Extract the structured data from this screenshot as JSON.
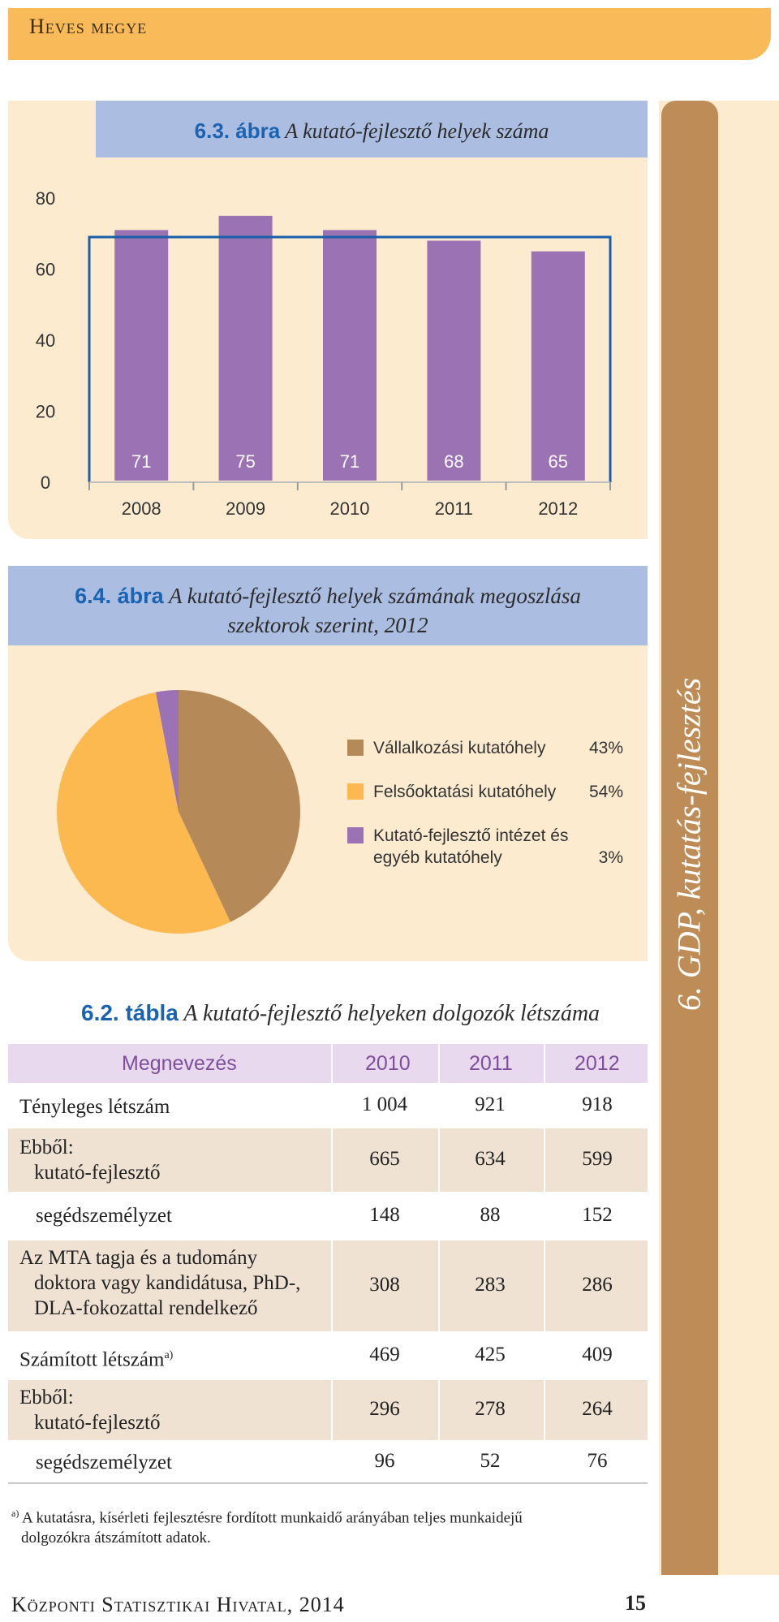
{
  "header": {
    "title": "Heves megye"
  },
  "side_label": "6. GDP, kutatás-fejlesztés",
  "figure_1": {
    "label": "6.3. ábra",
    "title": "A kutató-fejlesztő helyek száma",
    "chart_data": {
      "type": "bar",
      "categories": [
        "2008",
        "2009",
        "2010",
        "2011",
        "2012"
      ],
      "values": [
        71,
        75,
        71,
        68,
        65
      ],
      "y_ticks": [
        "0",
        "20",
        "40",
        "60",
        "80"
      ],
      "ylim": [
        0,
        80
      ],
      "bar_color": "#9b72b3",
      "axis_color": "#1a5ea8"
    }
  },
  "figure_2": {
    "label": "6.4. ábra",
    "title_line1": "A kutató-fejlesztő helyek számának megoszlása",
    "title_line2": "szektorok szerint, 2012",
    "chart_data": {
      "type": "pie",
      "slices": [
        {
          "label": "Vállalkozási kutatóhely",
          "value": 43,
          "pct": "43%",
          "color": "#b58a58"
        },
        {
          "label": "Felsőoktatási kutatóhely",
          "value": 54,
          "pct": "54%",
          "color": "#fbb94f"
        },
        {
          "label_line1": "Kutató-fejlesztő intézet és",
          "label_line2": "egyéb kutatóhely",
          "value": 3,
          "pct": "3%",
          "color": "#9b72b3"
        }
      ]
    }
  },
  "table": {
    "label": "6.2. tábla",
    "title": "A kutató-fejlesztő helyeken dolgozók létszáma",
    "headers": [
      "Megnevezés",
      "2010",
      "2011",
      "2012"
    ],
    "rows": [
      {
        "label": "Tényleges létszám",
        "values": [
          "1 004",
          "921",
          "918"
        ]
      },
      {
        "label_line1": "Ebből:",
        "label_line2": "kutató-fejlesztő",
        "values": [
          "665",
          "634",
          "599"
        ]
      },
      {
        "label": "segédszemélyzet",
        "values": [
          "148",
          "88",
          "152"
        ]
      },
      {
        "label_line1": "Az MTA tagja és a tudomány",
        "label_line2": "doktora vagy kandidátusa, PhD-,",
        "label_line3": "DLA-fokozattal rendelkező",
        "values": [
          "308",
          "283",
          "286"
        ]
      },
      {
        "label": "Számított létszám",
        "sup": "a)",
        "values": [
          "469",
          "425",
          "409"
        ]
      },
      {
        "label_line1": "Ebből:",
        "label_line2": "kutató-fejlesztő",
        "values": [
          "296",
          "278",
          "264"
        ]
      },
      {
        "label": "segédszemélyzet",
        "values": [
          "96",
          "52",
          "76"
        ]
      }
    ]
  },
  "footnote": {
    "mark": "a)",
    "line1": "A kutatásra, kísérleti fejlesztésre fordított munkaidő arányában teljes munkaidejű",
    "line2": "dolgozókra átszámított adatok."
  },
  "footer": {
    "publisher": "Központi Statisztikai Hivatal, 2014",
    "page": "15"
  }
}
